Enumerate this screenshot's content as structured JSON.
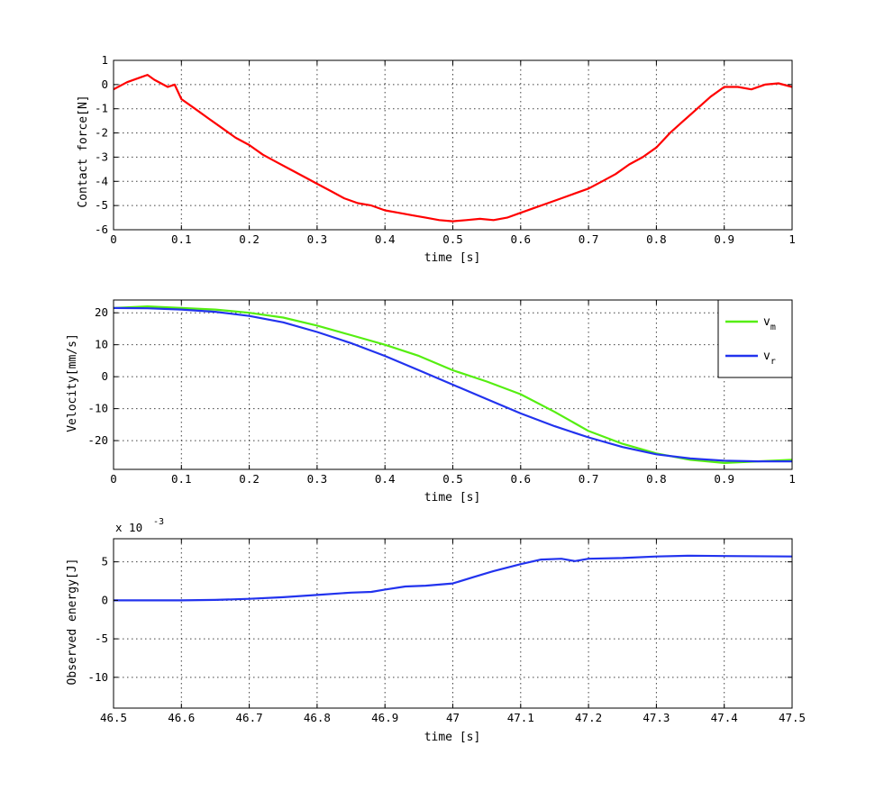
{
  "chart_data": [
    {
      "type": "line",
      "title": "",
      "xlabel": "time [s]",
      "ylabel": "Contact force[N]",
      "xlim": [
        0,
        1
      ],
      "ylim": [
        -6,
        1
      ],
      "xticks": [
        0,
        0.1,
        0.2,
        0.3,
        0.4,
        0.5,
        0.6,
        0.7,
        0.8,
        0.9,
        1
      ],
      "xtick_labels": [
        "0",
        "0.1",
        "0.2",
        "0.3",
        "0.4",
        "0.5",
        "0.6",
        "0.7",
        "0.8",
        "0.9",
        "1"
      ],
      "yticks": [
        1,
        0,
        -1,
        -2,
        -3,
        -4,
        -5,
        -6
      ],
      "ytick_labels": [
        "1",
        "0",
        "-1",
        "-2",
        "-3",
        "-4",
        "-5",
        "-6"
      ],
      "grid": true,
      "legend": null,
      "series": [
        {
          "color": "#ff0000",
          "x": [
            0,
            0.02,
            0.04,
            0.05,
            0.06,
            0.08,
            0.09,
            0.1,
            0.12,
            0.14,
            0.16,
            0.18,
            0.2,
            0.22,
            0.24,
            0.26,
            0.28,
            0.3,
            0.32,
            0.34,
            0.36,
            0.38,
            0.4,
            0.42,
            0.44,
            0.46,
            0.48,
            0.5,
            0.52,
            0.54,
            0.56,
            0.58,
            0.6,
            0.62,
            0.64,
            0.66,
            0.68,
            0.7,
            0.72,
            0.74,
            0.76,
            0.78,
            0.8,
            0.82,
            0.84,
            0.86,
            0.88,
            0.9,
            0.92,
            0.94,
            0.96,
            0.98,
            1.0
          ],
          "y": [
            -0.2,
            0.1,
            0.3,
            0.4,
            0.2,
            -0.1,
            0.0,
            -0.6,
            -1.0,
            -1.4,
            -1.8,
            -2.2,
            -2.5,
            -2.9,
            -3.2,
            -3.5,
            -3.8,
            -4.1,
            -4.4,
            -4.7,
            -4.9,
            -5.0,
            -5.2,
            -5.3,
            -5.4,
            -5.5,
            -5.6,
            -5.65,
            -5.6,
            -5.55,
            -5.6,
            -5.5,
            -5.3,
            -5.1,
            -4.9,
            -4.7,
            -4.5,
            -4.3,
            -4.0,
            -3.7,
            -3.3,
            -3.0,
            -2.6,
            -2.0,
            -1.5,
            -1.0,
            -0.5,
            -0.1,
            -0.1,
            -0.2,
            0.0,
            0.05,
            -0.1
          ]
        }
      ]
    },
    {
      "type": "line",
      "title": "",
      "xlabel": "time [s]",
      "ylabel": "Velocity[mm/s]",
      "xlim": [
        0,
        1
      ],
      "ylim": [
        -29,
        24
      ],
      "xticks": [
        0,
        0.1,
        0.2,
        0.3,
        0.4,
        0.5,
        0.6,
        0.7,
        0.8,
        0.9,
        1
      ],
      "xtick_labels": [
        "0",
        "0.1",
        "0.2",
        "0.3",
        "0.4",
        "0.5",
        "0.6",
        "0.7",
        "0.8",
        "0.9",
        "1"
      ],
      "yticks": [
        20,
        10,
        0,
        -10,
        -20
      ],
      "ytick_labels": [
        "20",
        "10",
        "0",
        "-10",
        "-20"
      ],
      "grid": true,
      "legend": "top-right",
      "series": [
        {
          "name": "v",
          "sub": "m",
          "color": "#55ee11",
          "x": [
            0,
            0.05,
            0.1,
            0.15,
            0.2,
            0.25,
            0.3,
            0.35,
            0.4,
            0.45,
            0.5,
            0.55,
            0.6,
            0.65,
            0.7,
            0.75,
            0.8,
            0.85,
            0.9,
            0.95,
            1.0
          ],
          "y": [
            21.5,
            22.0,
            21.5,
            21.0,
            20.0,
            18.5,
            16.0,
            13.0,
            10.0,
            6.5,
            2.0,
            -1.5,
            -5.5,
            -11.0,
            -17.0,
            -21.0,
            -24.0,
            -26.0,
            -27.0,
            -26.5,
            -26.0
          ]
        },
        {
          "name": "v",
          "sub": "r",
          "color": "#2233ee",
          "x": [
            0,
            0.05,
            0.1,
            0.15,
            0.2,
            0.25,
            0.3,
            0.35,
            0.4,
            0.45,
            0.5,
            0.55,
            0.6,
            0.65,
            0.7,
            0.75,
            0.8,
            0.85,
            0.9,
            0.95,
            1.0
          ],
          "y": [
            21.5,
            21.4,
            21.0,
            20.3,
            19.0,
            17.0,
            14.0,
            10.5,
            6.5,
            2.0,
            -2.5,
            -7.0,
            -11.5,
            -15.5,
            -19.0,
            -22.0,
            -24.3,
            -25.6,
            -26.3,
            -26.5,
            -26.5
          ]
        }
      ]
    },
    {
      "type": "line",
      "title": "",
      "xlabel": "time [s]",
      "ylabel": "Observed energy[J]",
      "exponent_label": "x 10",
      "exponent_power": "-3",
      "xlim": [
        46.5,
        47.5
      ],
      "ylim": [
        -14,
        8
      ],
      "xticks": [
        46.5,
        46.6,
        46.7,
        46.8,
        46.9,
        47,
        47.1,
        47.2,
        47.3,
        47.4,
        47.5
      ],
      "xtick_labels": [
        "46.5",
        "46.6",
        "46.7",
        "46.8",
        "46.9",
        "47",
        "47.1",
        "47.2",
        "47.3",
        "47.4",
        "47.5"
      ],
      "yticks": [
        5,
        0,
        -5,
        -10
      ],
      "ytick_labels": [
        "5",
        "0",
        "-5",
        "-10"
      ],
      "grid": true,
      "legend": null,
      "series": [
        {
          "color": "#2233ee",
          "x": [
            46.5,
            46.6,
            46.65,
            46.7,
            46.75,
            46.8,
            46.85,
            46.88,
            46.9,
            46.93,
            46.96,
            47.0,
            47.03,
            47.06,
            47.1,
            47.13,
            47.16,
            47.18,
            47.2,
            47.25,
            47.3,
            47.35,
            47.4,
            47.5
          ],
          "y": [
            0.0,
            0.0,
            0.05,
            0.2,
            0.4,
            0.7,
            1.0,
            1.1,
            1.4,
            1.8,
            1.9,
            2.2,
            3.0,
            3.8,
            4.7,
            5.3,
            5.4,
            5.1,
            5.4,
            5.5,
            5.7,
            5.8,
            5.75,
            5.7
          ]
        }
      ]
    }
  ]
}
